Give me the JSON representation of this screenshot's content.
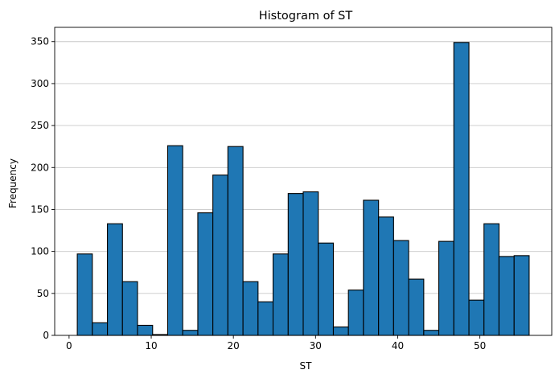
{
  "chart_data": {
    "type": "bar",
    "title": "Histogram of ST",
    "xlabel": "ST",
    "ylabel": "Frequency",
    "xlim": [
      -1.75,
      58.75
    ],
    "ylim": [
      0,
      367
    ],
    "xticks": [
      0,
      10,
      20,
      30,
      40,
      50
    ],
    "yticks": [
      0,
      50,
      100,
      150,
      200,
      250,
      300,
      350
    ],
    "grid": "horizontal",
    "bar_color": "#1f77b4",
    "edge_color": "#000000",
    "bins": [
      [
        1.0,
        2.83,
        97
      ],
      [
        2.83,
        4.67,
        15
      ],
      [
        4.67,
        6.5,
        133
      ],
      [
        6.5,
        8.33,
        64
      ],
      [
        8.33,
        10.17,
        12
      ],
      [
        10.17,
        12.0,
        1
      ],
      [
        12.0,
        13.83,
        226
      ],
      [
        13.83,
        15.67,
        6
      ],
      [
        15.67,
        17.5,
        146
      ],
      [
        17.5,
        19.33,
        191
      ],
      [
        19.33,
        21.17,
        225
      ],
      [
        21.17,
        23.0,
        64
      ],
      [
        23.0,
        24.83,
        40
      ],
      [
        24.83,
        26.67,
        97
      ],
      [
        26.67,
        28.5,
        169
      ],
      [
        28.5,
        30.33,
        171
      ],
      [
        30.33,
        32.17,
        110
      ],
      [
        32.17,
        34.0,
        10
      ],
      [
        34.0,
        35.83,
        54
      ],
      [
        35.83,
        37.67,
        161
      ],
      [
        37.67,
        39.5,
        141
      ],
      [
        39.5,
        41.33,
        113
      ],
      [
        41.33,
        43.17,
        67
      ],
      [
        43.17,
        45.0,
        6
      ],
      [
        45.0,
        46.83,
        112
      ],
      [
        46.83,
        48.67,
        349
      ],
      [
        48.67,
        50.5,
        42
      ],
      [
        50.5,
        52.33,
        133
      ],
      [
        52.33,
        54.17,
        94
      ],
      [
        54.17,
        56.0,
        95
      ]
    ]
  }
}
